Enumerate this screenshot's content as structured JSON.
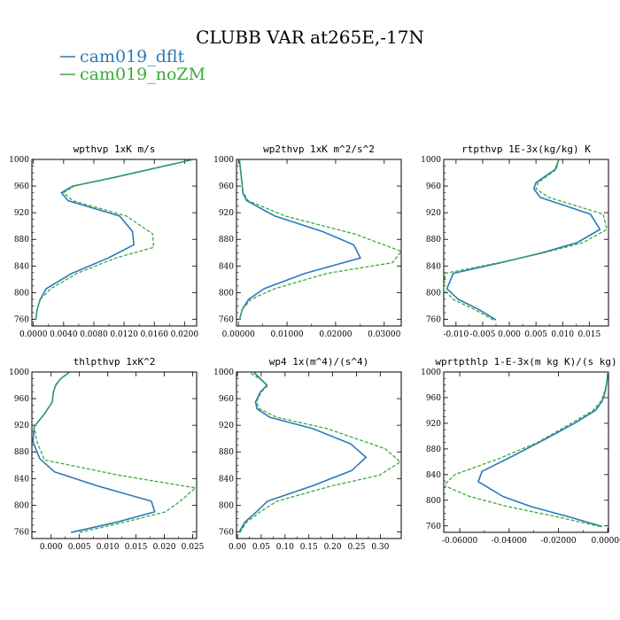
{
  "figure": {
    "title": "CLUBB VAR at265E,-17N"
  },
  "legend": [
    {
      "name": "cam019_dflt",
      "color": "#2a7ab8"
    },
    {
      "name": "cam019_noZM",
      "color": "#3aaa3a"
    }
  ],
  "chart_data": [
    {
      "type": "line",
      "title": "wpthvp  1xK m/s",
      "xlim": [
        -0.0002,
        0.0216
      ],
      "ylim": [
        1000,
        750
      ],
      "xticks": [
        "0.0000",
        "0.0040",
        "0.0080",
        "0.0120",
        "0.0160",
        "0.0200"
      ],
      "xtick_values": [
        0,
        0.004,
        0.008,
        0.012,
        0.016,
        0.02
      ],
      "yticks": [
        760,
        800,
        840,
        880,
        920,
        960,
        1000
      ],
      "series": [
        {
          "name": "cam019_dflt",
          "x": [
            0.0003,
            0.0005,
            0.0009,
            0.0017,
            0.0051,
            0.0099,
            0.0133,
            0.0131,
            0.0114,
            0.0046,
            0.0037,
            0.0052,
            0.0103,
            0.0212
          ],
          "y": [
            759,
            775,
            790,
            806,
            829,
            852,
            872,
            892,
            915,
            938,
            950,
            960,
            972,
            1000
          ]
        },
        {
          "name": "cam019_noZM",
          "x": [
            0.0003,
            0.0005,
            0.0009,
            0.0023,
            0.0058,
            0.0109,
            0.0159,
            0.0158,
            0.0123,
            0.0052,
            0.004,
            0.0054,
            0.0101,
            0.0212
          ],
          "y": [
            759,
            775,
            790,
            806,
            829,
            852,
            868,
            888,
            915,
            938,
            950,
            960,
            972,
            1000
          ]
        }
      ]
    },
    {
      "type": "line",
      "title": "wp2thvp  1xK m^2/s^2",
      "xlim": [
        -0.0004,
        0.0335
      ],
      "ylim": [
        1000,
        750
      ],
      "xticks": [
        "0.00000",
        "0.01000",
        "0.02000",
        "0.03000"
      ],
      "xtick_values": [
        0,
        0.01,
        0.02,
        0.03
      ],
      "yticks": [
        760,
        800,
        840,
        880,
        920,
        960,
        1000
      ],
      "series": [
        {
          "name": "cam019_dflt",
          "x": [
            0.0002,
            0.0008,
            0.0021,
            0.0053,
            0.0137,
            0.0251,
            0.0237,
            0.0172,
            0.0075,
            0.0017,
            0.0009,
            0.0008,
            0.0005,
            0.0002
          ],
          "y": [
            759,
            775,
            790,
            806,
            829,
            852,
            872,
            892,
            915,
            938,
            950,
            960,
            980,
            1000
          ]
        },
        {
          "name": "cam019_noZM",
          "x": [
            0.0002,
            0.0008,
            0.0026,
            0.0075,
            0.0183,
            0.0317,
            0.0335,
            0.024,
            0.0096,
            0.002,
            0.001,
            0.0008,
            0.0005,
            0.0002
          ],
          "y": [
            759,
            775,
            790,
            806,
            829,
            845,
            862,
            888,
            915,
            938,
            950,
            960,
            980,
            1000
          ]
        }
      ]
    },
    {
      "type": "line",
      "title": "rtpthvp  1E-3x(kg/kg) K",
      "xlim": [
        -0.0123,
        0.0186
      ],
      "ylim": [
        1000,
        750
      ],
      "xticks": [
        "-0.010",
        "-0.005",
        "0.000",
        "0.005",
        "0.010",
        "0.015"
      ],
      "xtick_values": [
        -0.01,
        -0.005,
        0,
        0.005,
        0.01,
        0.015
      ],
      "yticks": [
        760,
        800,
        840,
        880,
        920,
        960,
        1000
      ],
      "series": [
        {
          "name": "cam019_dflt",
          "x": [
            -0.0025,
            -0.0058,
            -0.0096,
            -0.0117,
            -0.0105,
            -0.0016,
            0.0062,
            0.0127,
            0.017,
            0.0152,
            0.0058,
            0.0046,
            0.005,
            0.0086,
            0.0093
          ],
          "y": [
            759,
            775,
            790,
            806,
            829,
            845,
            860,
            875,
            895,
            918,
            943,
            956,
            965,
            985,
            1000
          ]
        },
        {
          "name": "cam019_noZM",
          "x": [
            -0.003,
            -0.0066,
            -0.0106,
            -0.0123,
            -0.012,
            -0.002,
            0.0066,
            0.0138,
            0.0183,
            0.0176,
            0.0074,
            0.005,
            0.0054,
            0.0088,
            0.0093
          ],
          "y": [
            759,
            775,
            790,
            806,
            829,
            845,
            860,
            875,
            895,
            918,
            943,
            956,
            965,
            985,
            1000
          ]
        }
      ]
    },
    {
      "type": "line",
      "title": "thlpthvp  1xK^2",
      "xlim": [
        -0.0034,
        0.0257
      ],
      "ylim": [
        1000,
        750
      ],
      "xticks": [
        "0.000",
        "0.005",
        "0.010",
        "0.015",
        "0.020",
        "0.025"
      ],
      "xtick_values": [
        0,
        0.005,
        0.01,
        0.015,
        0.02,
        0.025
      ],
      "yticks": [
        760,
        800,
        840,
        880,
        920,
        960,
        1000
      ],
      "series": [
        {
          "name": "cam019_dflt",
          "x": [
            0.0035,
            0.0118,
            0.0183,
            0.0177,
            0.0082,
            0.0006,
            -0.002,
            -0.0032,
            -0.003,
            -0.0011,
            0.0002,
            0.0004,
            0.0008,
            0.0017,
            0.0033
          ],
          "y": [
            759,
            775,
            790,
            806,
            829,
            850,
            870,
            895,
            918,
            938,
            955,
            970,
            980,
            990,
            1000
          ]
        },
        {
          "name": "cam019_noZM",
          "x": [
            0.005,
            0.0132,
            0.0202,
            0.0228,
            0.0255,
            0.012,
            -0.0012,
            -0.0025,
            -0.003,
            -0.0011,
            0.0002,
            0.0004,
            0.0008,
            0.0017,
            0.0033
          ],
          "y": [
            759,
            775,
            790,
            806,
            826,
            845,
            868,
            895,
            918,
            938,
            955,
            970,
            980,
            990,
            1000
          ]
        }
      ]
    },
    {
      "type": "line",
      "title": "wp4  1x(m^4)/(s^4)",
      "xlim": [
        -0.002,
        0.344
      ],
      "ylim": [
        1000,
        750
      ],
      "xticks": [
        "0.00",
        "0.05",
        "0.10",
        "0.15",
        "0.20",
        "0.25",
        "0.30"
      ],
      "xtick_values": [
        0,
        0.05,
        0.1,
        0.15,
        0.2,
        0.25,
        0.3
      ],
      "yticks": [
        760,
        800,
        840,
        880,
        920,
        960,
        1000
      ],
      "series": [
        {
          "name": "cam019_dflt",
          "x": [
            0.003,
            0.016,
            0.04,
            0.063,
            0.157,
            0.24,
            0.27,
            0.238,
            0.158,
            0.068,
            0.041,
            0.038,
            0.048,
            0.062,
            0.048,
            0.034
          ],
          "y": [
            759,
            775,
            790,
            806,
            829,
            852,
            872,
            892,
            915,
            932,
            945,
            955,
            970,
            980,
            990,
            1000
          ]
        },
        {
          "name": "cam019_noZM",
          "x": [
            0.005,
            0.02,
            0.048,
            0.083,
            0.198,
            0.298,
            0.342,
            0.31,
            0.188,
            0.082,
            0.046,
            0.04,
            0.05,
            0.064,
            0.046,
            0.024
          ],
          "y": [
            759,
            775,
            790,
            806,
            829,
            845,
            865,
            885,
            915,
            932,
            945,
            955,
            970,
            980,
            990,
            1000
          ]
        }
      ]
    },
    {
      "type": "line",
      "title": "wprtpthlp  1-E-3x(m kg K)/(s kg)",
      "xlim": [
        -0.0665,
        0.0003
      ],
      "ylim": [
        1000,
        750
      ],
      "xticks": [
        "-0.06000",
        "-0.04000",
        "-0.02000",
        "0.00000"
      ],
      "xtick_values": [
        -0.06,
        -0.04,
        -0.02,
        0
      ],
      "yticks": [
        760,
        800,
        840,
        880,
        920,
        960,
        1000
      ],
      "series": [
        {
          "name": "cam019_dflt",
          "x": [
            -0.0022,
            -0.0165,
            -0.031,
            -0.0425,
            -0.0525,
            -0.051,
            -0.038,
            -0.0255,
            -0.0135,
            -0.005,
            -0.0022,
            -0.001,
            -0.0003,
            0.0
          ],
          "y": [
            759,
            775,
            790,
            806,
            829,
            845,
            870,
            895,
            920,
            940,
            955,
            970,
            985,
            1000
          ]
        },
        {
          "name": "cam019_noZM",
          "x": [
            -0.003,
            -0.0215,
            -0.0405,
            -0.056,
            -0.0665,
            -0.062,
            -0.044,
            -0.0285,
            -0.0148,
            -0.006,
            -0.0026,
            -0.0012,
            -0.0003,
            0.0
          ],
          "y": [
            759,
            775,
            790,
            806,
            823,
            840,
            865,
            890,
            920,
            940,
            955,
            970,
            985,
            1000
          ]
        }
      ]
    }
  ]
}
